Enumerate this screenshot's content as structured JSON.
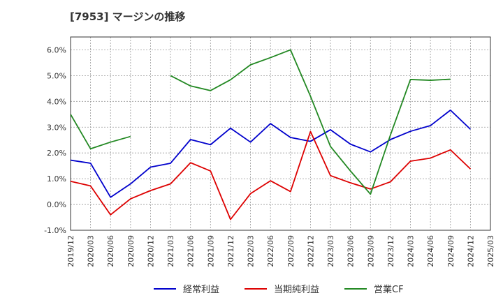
{
  "chart_data": {
    "type": "line",
    "title": "[7953]  マージンの推移",
    "xlabel": "",
    "ylabel": "",
    "ylim": [
      -1.0,
      6.5
    ],
    "yticks": [
      -1.0,
      0.0,
      1.0,
      2.0,
      3.0,
      4.0,
      5.0,
      6.0
    ],
    "ytick_labels": [
      "-1.0%",
      "0.0%",
      "1.0%",
      "2.0%",
      "3.0%",
      "4.0%",
      "5.0%",
      "6.0%"
    ],
    "categories": [
      "2019/12",
      "2020/03",
      "2020/06",
      "2020/09",
      "2020/12",
      "2021/03",
      "2021/06",
      "2021/09",
      "2021/12",
      "2022/03",
      "2022/06",
      "2022/09",
      "2022/12",
      "2023/03",
      "2023/06",
      "2023/09",
      "2023/12",
      "2024/03",
      "2024/06",
      "2024/09",
      "2024/12",
      "2025/03"
    ],
    "grid": true,
    "legend_position": "bottom",
    "series": [
      {
        "name": "経常利益",
        "color": "#0000cc",
        "values": [
          1.72,
          1.6,
          0.28,
          0.8,
          1.45,
          1.6,
          2.52,
          2.32,
          2.96,
          2.42,
          3.14,
          2.6,
          2.45,
          2.9,
          2.34,
          2.04,
          2.52,
          2.84,
          3.06,
          3.66,
          2.92,
          null
        ]
      },
      {
        "name": "当期純利益",
        "color": "#dd0000",
        "values": [
          0.9,
          0.72,
          -0.4,
          0.22,
          0.54,
          0.8,
          1.62,
          1.3,
          -0.58,
          0.42,
          0.92,
          0.5,
          2.83,
          1.12,
          0.84,
          0.6,
          0.88,
          1.68,
          1.8,
          2.12,
          1.38,
          null
        ]
      },
      {
        "name": "営業CF",
        "color": "#228822",
        "values": [
          3.5,
          2.16,
          2.42,
          2.64,
          null,
          5.0,
          4.6,
          4.42,
          4.84,
          5.42,
          5.7,
          6.0,
          4.2,
          2.25,
          1.3,
          0.4,
          2.7,
          4.85,
          4.82,
          4.86,
          null,
          null
        ]
      }
    ]
  }
}
